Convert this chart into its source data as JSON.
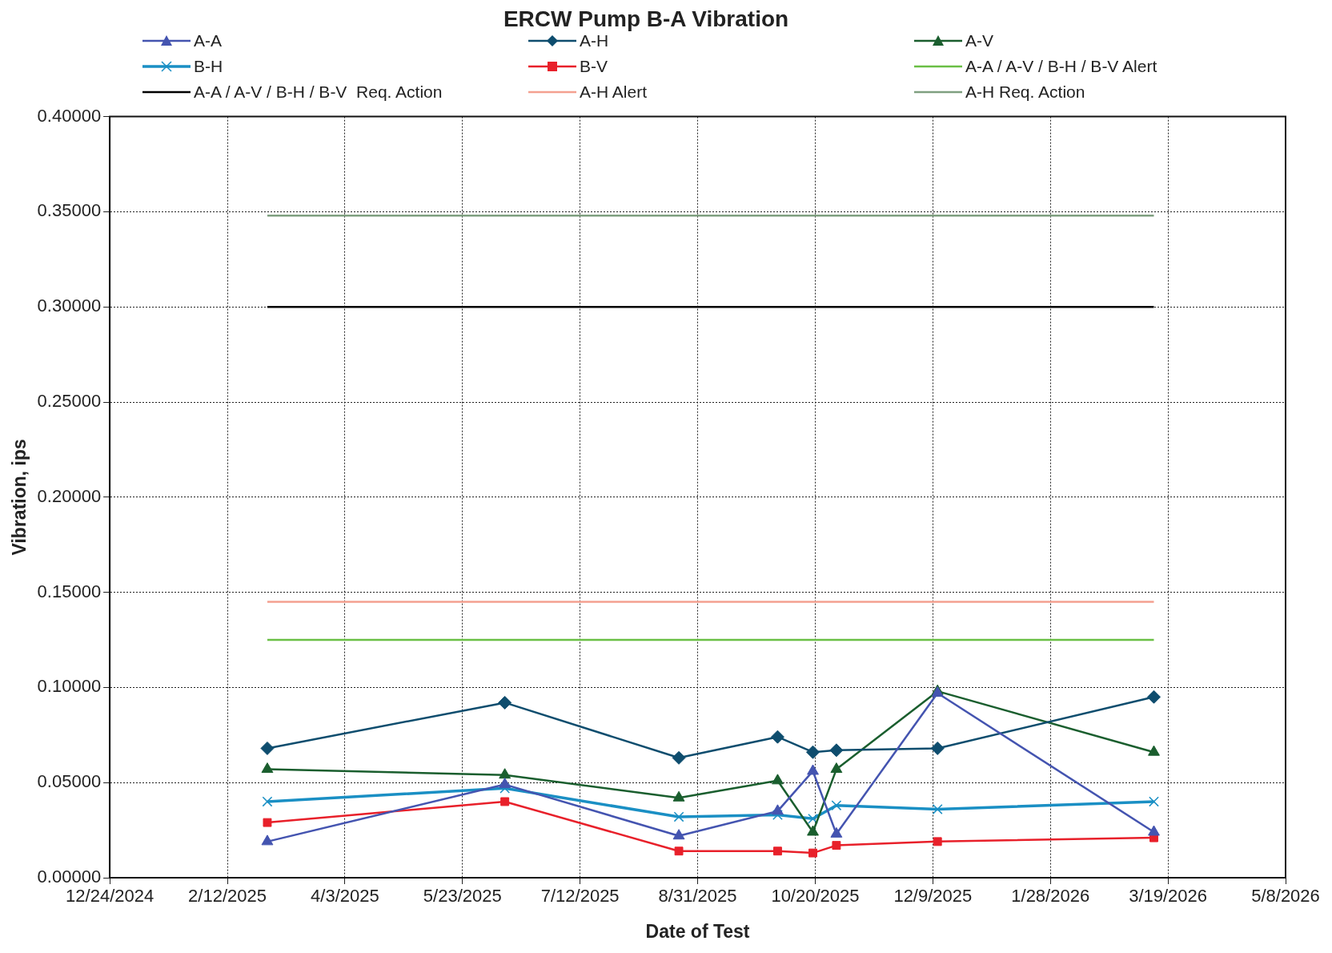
{
  "chart_data": {
    "type": "line",
    "title": "ERCW Pump B-A Vibration",
    "xlabel": "Date of Test",
    "ylabel": "Vibration, ips",
    "x": [
      "2025-03-01",
      "2025-06-10",
      "2025-08-23",
      "2025-10-04",
      "2025-10-19",
      "2025-10-29",
      "2025-12-11",
      "2026-03-13"
    ],
    "series": [
      {
        "name": "A-A",
        "color": "#4454b0",
        "marker": "triangle",
        "values": [
          0.019,
          0.049,
          0.022,
          0.035,
          0.056,
          0.023,
          0.097,
          0.024
        ]
      },
      {
        "name": "A-H",
        "color": "#0e4d6e",
        "marker": "diamond",
        "values": [
          0.068,
          0.092,
          0.063,
          0.074,
          0.066,
          0.067,
          0.068,
          0.095
        ]
      },
      {
        "name": "A-V",
        "color": "#1a5e2e",
        "marker": "triangle",
        "values": [
          0.057,
          0.054,
          0.042,
          0.051,
          0.024,
          0.057,
          0.098,
          0.066
        ]
      },
      {
        "name": "B-H",
        "color": "#1a8fc4",
        "marker": "cross",
        "values": [
          0.04,
          0.047,
          0.032,
          0.033,
          0.031,
          0.038,
          0.036,
          0.04
        ]
      },
      {
        "name": "B-V",
        "color": "#e8202a",
        "marker": "square",
        "values": [
          0.029,
          0.04,
          0.014,
          0.014,
          0.013,
          0.017,
          0.019,
          0.021
        ]
      },
      {
        "name": "A-A / A-V / B-H / B-V Alert",
        "color": "#6abf45",
        "marker": "none",
        "x": [
          "2025-03-01",
          "2026-03-13"
        ],
        "values": [
          0.125,
          0.125
        ]
      },
      {
        "name": "A-A / A-V / B-H / B-V  Req. Action",
        "color": "#000000",
        "marker": "none",
        "x": [
          "2025-03-01",
          "2026-03-13"
        ],
        "values": [
          0.3,
          0.3
        ]
      },
      {
        "name": "A-H Alert",
        "color": "#f4a090",
        "marker": "none",
        "x": [
          "2025-03-01",
          "2026-03-13"
        ],
        "values": [
          0.145,
          0.145
        ]
      },
      {
        "name": "A-H Req. Action",
        "color": "#7f9f80",
        "marker": "none",
        "x": [
          "2025-03-01",
          "2026-03-13"
        ],
        "values": [
          0.348,
          0.348
        ]
      }
    ],
    "xlim": [
      "2024-12-24",
      "2026-05-08"
    ],
    "xticks": [
      {
        "value": "2024-12-24",
        "label": "12/24/2024"
      },
      {
        "value": "2025-02-12",
        "label": "2/12/2025"
      },
      {
        "value": "2025-04-03",
        "label": "4/3/2025"
      },
      {
        "value": "2025-05-23",
        "label": "5/23/2025"
      },
      {
        "value": "2025-07-12",
        "label": "7/12/2025"
      },
      {
        "value": "2025-08-31",
        "label": "8/31/2025"
      },
      {
        "value": "2025-10-20",
        "label": "10/20/2025"
      },
      {
        "value": "2025-12-09",
        "label": "12/9/2025"
      },
      {
        "value": "2026-01-28",
        "label": "1/28/2026"
      },
      {
        "value": "2026-03-19",
        "label": "3/19/2026"
      },
      {
        "value": "2026-05-08",
        "label": "5/8/2026"
      }
    ],
    "ylim": [
      0,
      0.4
    ],
    "yticks": [
      {
        "value": 0,
        "label": "0.00000"
      },
      {
        "value": 0.05,
        "label": "0.05000"
      },
      {
        "value": 0.1,
        "label": "0.10000"
      },
      {
        "value": 0.15,
        "label": "0.15000"
      },
      {
        "value": 0.2,
        "label": "0.20000"
      },
      {
        "value": 0.25,
        "label": "0.25000"
      },
      {
        "value": 0.3,
        "label": "0.30000"
      },
      {
        "value": 0.35,
        "label": "0.35000"
      },
      {
        "value": 0.4,
        "label": "0.40000"
      }
    ],
    "grid": true,
    "legend": "top",
    "line_style": "solid"
  }
}
